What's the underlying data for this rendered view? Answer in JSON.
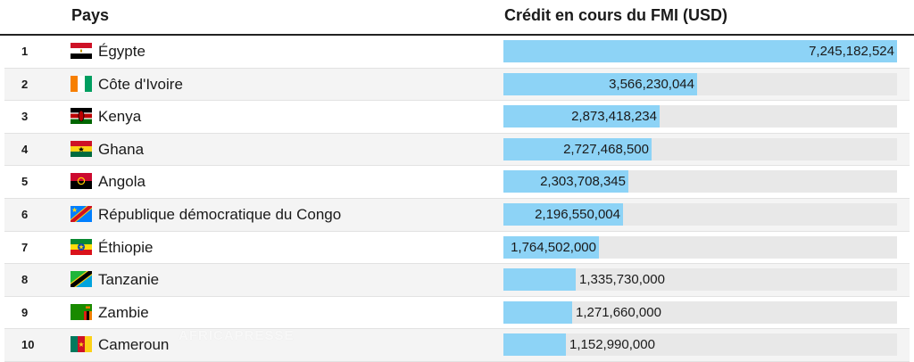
{
  "header": {
    "country_label": "Pays",
    "value_label": "Crédit en cours du FMI (USD)"
  },
  "watermark": "AFRICAPRESSE",
  "chart_data": {
    "type": "bar",
    "orientation": "horizontal",
    "title": "",
    "xlabel": "Crédit en cours du FMI (USD)",
    "ylabel": "Pays",
    "xlim": [
      0,
      7245182524
    ],
    "grid": false,
    "legend": "none",
    "bar_color": "#8dd3f6",
    "track_color": "#e8e8e8",
    "rows": [
      {
        "rank": "1",
        "country": "Égypte",
        "flag": "egypt-flag",
        "value": 7245182524,
        "label": "7,245,182,524"
      },
      {
        "rank": "2",
        "country": "Côte d'Ivoire",
        "flag": "cote-divoire-flag",
        "value": 3566230044,
        "label": "3,566,230,044"
      },
      {
        "rank": "3",
        "country": "Kenya",
        "flag": "kenya-flag",
        "value": 2873418234,
        "label": "2,873,418,234"
      },
      {
        "rank": "4",
        "country": "Ghana",
        "flag": "ghana-flag",
        "value": 2727468500,
        "label": "2,727,468,500"
      },
      {
        "rank": "5",
        "country": "Angola",
        "flag": "angola-flag",
        "value": 2303708345,
        "label": "2,303,708,345"
      },
      {
        "rank": "6",
        "country": "République démocratique du Congo",
        "flag": "drc-flag",
        "value": 2196550004,
        "label": "2,196,550,004"
      },
      {
        "rank": "7",
        "country": "Éthiopie",
        "flag": "ethiopia-flag",
        "value": 1764502000,
        "label": "1,764,502,000"
      },
      {
        "rank": "8",
        "country": "Tanzanie",
        "flag": "tanzania-flag",
        "value": 1335730000,
        "label": "1,335,730,000"
      },
      {
        "rank": "9",
        "country": "Zambie",
        "flag": "zambia-flag",
        "value": 1271660000,
        "label": "1,271,660,000"
      },
      {
        "rank": "10",
        "country": "Cameroun",
        "flag": "cameroon-flag",
        "value": 1152990000,
        "label": "1,152,990,000"
      }
    ]
  }
}
